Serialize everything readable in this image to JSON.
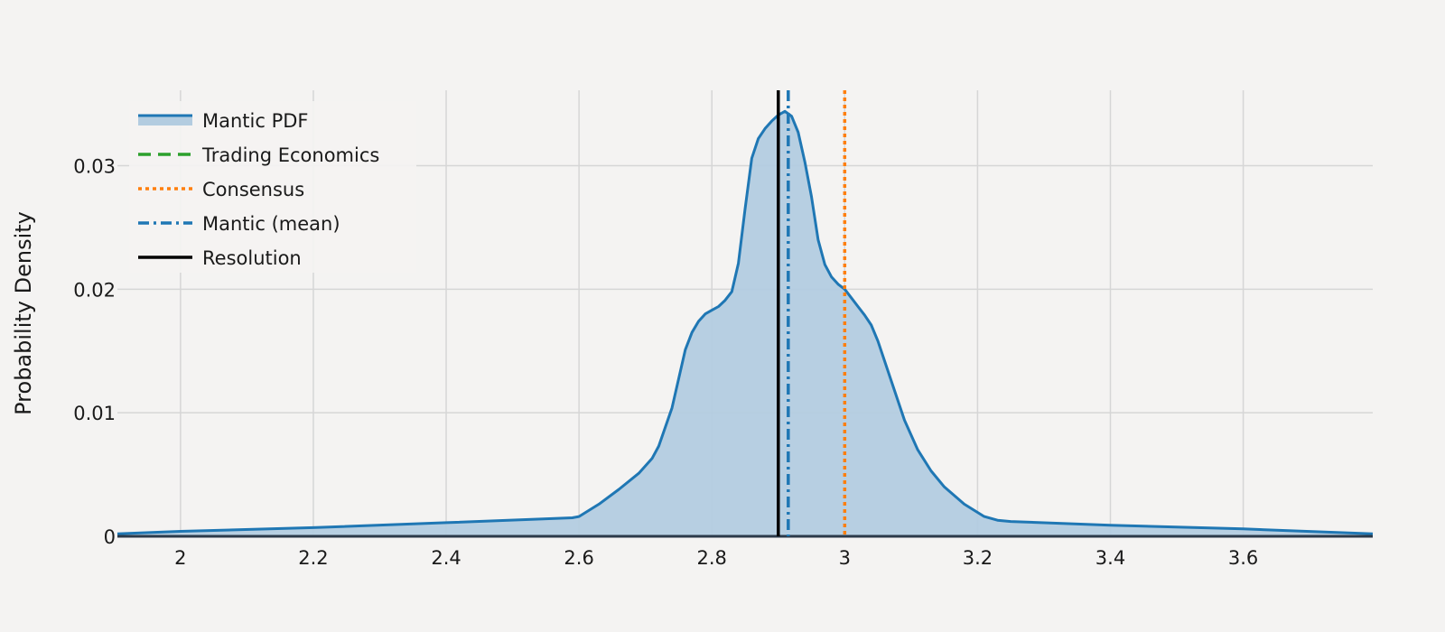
{
  "chart_data": {
    "type": "area",
    "title": "",
    "xlabel": "",
    "ylabel": "Probability Density",
    "xlim": [
      1.905,
      3.795
    ],
    "ylim": [
      0,
      0.0361
    ],
    "x_ticks": [
      2,
      2.2,
      2.4,
      2.6,
      2.8,
      3,
      3.2,
      3.4,
      3.6
    ],
    "x_tick_labels": [
      "2",
      "2.2",
      "2.4",
      "2.6",
      "2.8",
      "3",
      "3.2",
      "3.4",
      "3.6"
    ],
    "y_ticks": [
      0,
      0.01,
      0.02,
      0.03
    ],
    "y_tick_labels": [
      "0",
      "0.01",
      "0.02",
      "0.03"
    ],
    "grid": true,
    "legend_position": "top-left",
    "series": [
      {
        "name": "Mantic PDF",
        "color": "#1f77b4",
        "fill_color": "#b3cce0",
        "x": [
          1.905,
          2.0,
          2.2,
          2.4,
          2.59,
          2.6,
          2.63,
          2.66,
          2.69,
          2.71,
          2.72,
          2.74,
          2.76,
          2.77,
          2.78,
          2.79,
          2.8,
          2.81,
          2.82,
          2.83,
          2.84,
          2.85,
          2.86,
          2.87,
          2.88,
          2.89,
          2.9,
          2.91,
          2.915,
          2.92,
          2.93,
          2.94,
          2.95,
          2.96,
          2.97,
          2.98,
          2.99,
          3.0,
          3.01,
          3.02,
          3.03,
          3.04,
          3.05,
          3.07,
          3.09,
          3.11,
          3.13,
          3.15,
          3.18,
          3.21,
          3.23,
          3.25,
          3.4,
          3.6,
          3.795
        ],
        "y": [
          0.0002,
          0.0004,
          0.0007,
          0.0011,
          0.0015,
          0.0016,
          0.0026,
          0.0038,
          0.0051,
          0.0063,
          0.0073,
          0.0104,
          0.0151,
          0.0165,
          0.0174,
          0.018,
          0.0183,
          0.0186,
          0.0191,
          0.0198,
          0.0221,
          0.0265,
          0.0306,
          0.0322,
          0.033,
          0.0336,
          0.0341,
          0.0344,
          0.0342,
          0.034,
          0.0327,
          0.0303,
          0.0275,
          0.024,
          0.022,
          0.021,
          0.0204,
          0.02,
          0.0193,
          0.0186,
          0.0179,
          0.0171,
          0.0158,
          0.0126,
          0.0094,
          0.007,
          0.0053,
          0.004,
          0.0026,
          0.0016,
          0.0013,
          0.0012,
          0.0009,
          0.0006,
          0.0002
        ]
      },
      {
        "name": "Trading Economics",
        "color": "#2ca02c",
        "style": "dashed",
        "x_value": null
      },
      {
        "name": "Consensus",
        "color": "#ff7f0e",
        "style": "dotted",
        "x_value": 3.0
      },
      {
        "name": "Mantic (mean)",
        "color": "#1f77b4",
        "style": "dashdot",
        "x_value": 2.915
      },
      {
        "name": "Resolution",
        "color": "#000000",
        "style": "solid",
        "x_value": 2.9
      }
    ]
  }
}
